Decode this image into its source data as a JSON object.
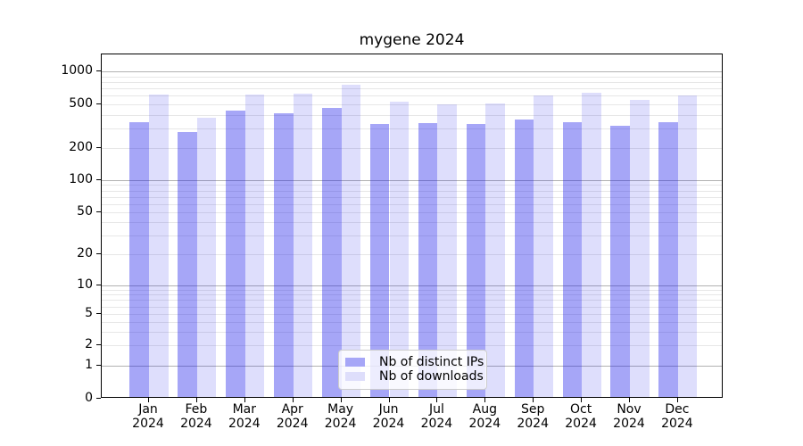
{
  "chart_data": {
    "type": "bar",
    "title": "mygene 2024",
    "scale": "symlog",
    "grid": true,
    "legend_position": "lower center",
    "categories": [
      "Jan",
      "Feb",
      "Mar",
      "Apr",
      "May",
      "Jun",
      "Jul",
      "Aug",
      "Sep",
      "Oct",
      "Nov",
      "Dec"
    ],
    "year_label": "2024",
    "series": [
      {
        "name": "Nb of distinct IPs",
        "color": "#a6a6f7",
        "fill": "rgba(20,20,235,0.38)",
        "values": [
          330,
          272,
          425,
          400,
          445,
          318,
          325,
          320,
          350,
          330,
          308,
          332
        ]
      },
      {
        "name": "Nb of downloads",
        "color": "#dedefb",
        "fill": "rgba(20,20,235,0.14)",
        "values": [
          592,
          362,
          593,
          607,
          731,
          510,
          480,
          488,
          580,
          615,
          528,
          585
        ]
      }
    ],
    "yticks": [
      0,
      1,
      2,
      5,
      10,
      20,
      50,
      100,
      200,
      500,
      1000
    ],
    "ylim": [
      0,
      1500
    ],
    "xlabel": "",
    "ylabel": ""
  },
  "colors": {
    "grid_major": "#b2b2b2",
    "grid_minor": "#e7e7e7",
    "axis": "#000000",
    "background": "#ffffff",
    "text": "#000000"
  }
}
